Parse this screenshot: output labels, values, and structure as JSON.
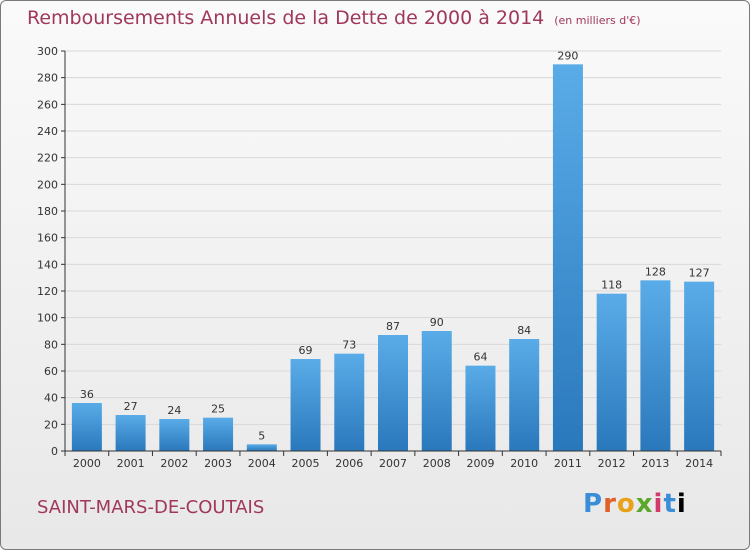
{
  "header": {
    "title": "Remboursements Annuels de la Dette de 2000 à 2014",
    "unit": "(en milliers d'€)"
  },
  "footer": {
    "commune": "SAINT-MARS-DE-COUTAIS",
    "logo": "Proxiti"
  },
  "colors": {
    "title": "#a0385a",
    "bar_top": "#5aace8",
    "bar_bottom": "#2a78bc",
    "grid": "#d8d8d8",
    "axis": "#333333"
  },
  "chart_data": {
    "type": "bar",
    "title": "Remboursements Annuels de la Dette de 2000 à 2014",
    "xlabel": "",
    "ylabel": "",
    "categories": [
      "2000",
      "2001",
      "2002",
      "2003",
      "2004",
      "2005",
      "2006",
      "2007",
      "2008",
      "2009",
      "2010",
      "2011",
      "2012",
      "2013",
      "2014"
    ],
    "values": [
      36,
      27,
      24,
      25,
      5,
      69,
      73,
      87,
      90,
      64,
      84,
      290,
      118,
      128,
      127
    ],
    "ylim": [
      0,
      300
    ],
    "yticks": [
      0,
      20,
      40,
      60,
      80,
      100,
      120,
      140,
      160,
      180,
      200,
      220,
      240,
      260,
      280,
      300
    ],
    "grid": true,
    "legend": "none"
  }
}
